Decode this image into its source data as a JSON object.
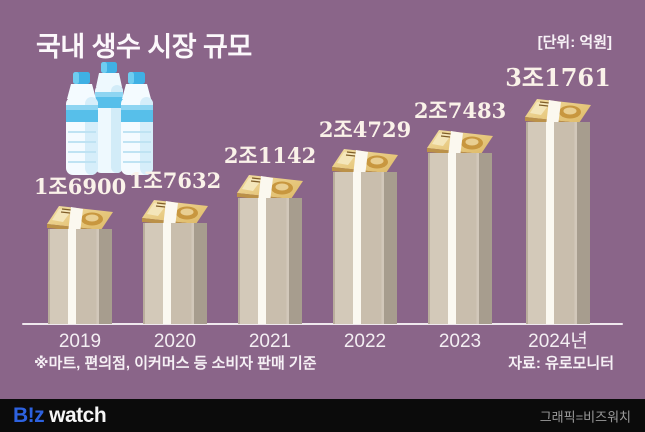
{
  "title": "국내 생수 시장 규모",
  "unit_label": "[단위: 억원]",
  "footnote": "※마트, 편의점, 이커머스 등 소비자 판매 기준",
  "source": "자료: 유로모니터",
  "footer": {
    "logo_biz": "B!z",
    "logo_watch": "watch",
    "credit": "그래픽=비즈워치"
  },
  "colors": {
    "background": "#8a6589",
    "bar_light_face": "#d3c9b9",
    "bar_dark_face": "#a79d8e",
    "bar_stripe": "#fbf9f1",
    "cap_gold_light": "#f2dfa6",
    "cap_gold_dark": "#ddb967",
    "axis": "#efe8ee",
    "footer_bg": "#0b0b0b",
    "logo_blue": "#2d62e0",
    "text_white": "#fcf8fb"
  },
  "chart_data": {
    "type": "bar",
    "title": "국내 생수 시장 규모",
    "unit": "억원",
    "categories": [
      "2019",
      "2020",
      "2021",
      "2022",
      "2023",
      "2024년"
    ],
    "values": [
      16900,
      17632,
      21142,
      24729,
      27483,
      31761
    ],
    "value_labels": [
      "1조6900",
      "1조7632",
      "2조1142",
      "2조4729",
      "2조7483",
      "3조1761"
    ],
    "ylim": [
      0,
      31761
    ],
    "grid": false,
    "legend": "none",
    "note": "※마트, 편의점, 이커머스 등 소비자 판매 기준",
    "source": "자료: 유로모니터"
  }
}
